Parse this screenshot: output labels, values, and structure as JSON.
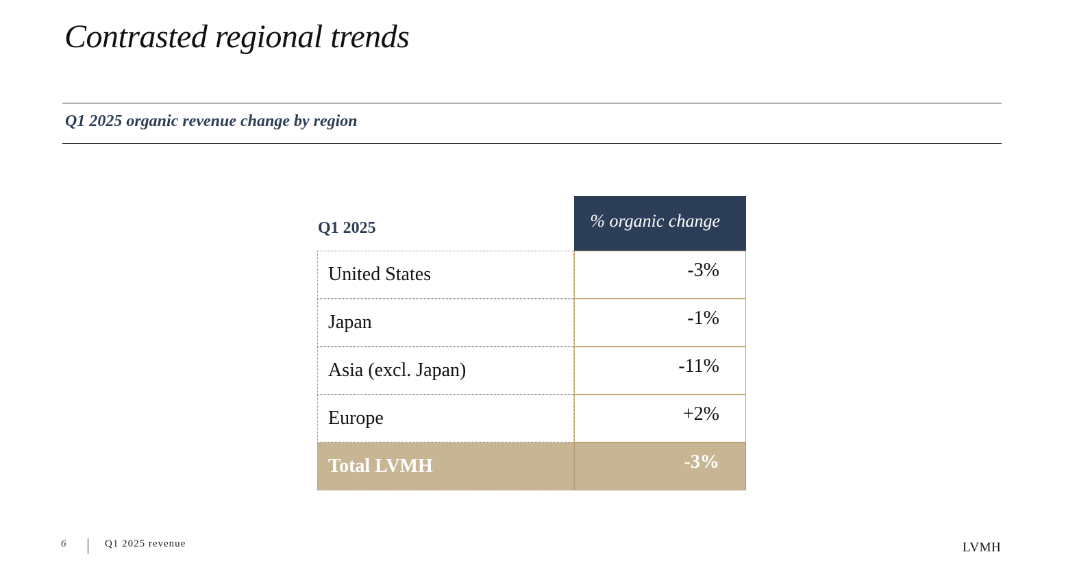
{
  "slide": {
    "title": "Contrasted regional trends",
    "subtitle": "Q1 2025 organic revenue change by region"
  },
  "table": {
    "row_header": "Q1 2025",
    "column_header": "% organic change",
    "rows": [
      {
        "region": "United States",
        "value": "-3%"
      },
      {
        "region": "Japan",
        "value": "-1%"
      },
      {
        "region": "Asia (excl. Japan)",
        "value": "-11%"
      },
      {
        "region": "Europe",
        "value": "+2%"
      }
    ],
    "total": {
      "region": "Total LVMH",
      "value": "-3%"
    }
  },
  "footer": {
    "page_number": "6",
    "label": "Q1 2025 revenue",
    "brand": "LVMH"
  },
  "colors": {
    "navy": "#2c3e57",
    "gold": "#c7b594",
    "gold_border": "#c2a56f"
  }
}
